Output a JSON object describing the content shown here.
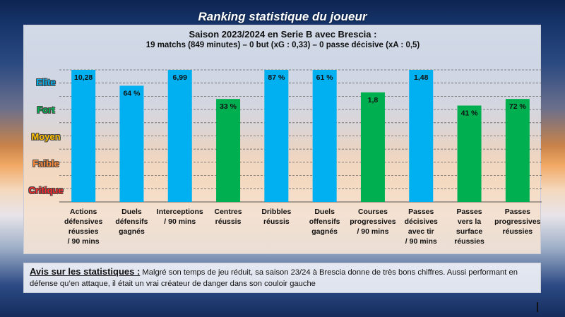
{
  "page": {
    "title": "Ranking statistique du joueur"
  },
  "levels": [
    {
      "label": "Elite",
      "color": "#00b0f0"
    },
    {
      "label": "Fort",
      "color": "#00b050"
    },
    {
      "label": "Moyen",
      "color": "#ffc000"
    },
    {
      "label": "Faible",
      "color": "#ff8c3a"
    },
    {
      "label": "Critique",
      "color": "#ff2a2a"
    }
  ],
  "colors": {
    "bar_blue": "#00b0f0",
    "bar_green": "#00b050",
    "grid": "#666666"
  },
  "chart_data": {
    "type": "bar",
    "title": "Saison 2023/2024 en Serie B avec Brescia :",
    "subtitle": "19 matchs (849 minutes) – 0 but (xG : 0,33) – 0 passe décisive (xA : 0,5)",
    "ylim": [
      0,
      100
    ],
    "grid": true,
    "categories": [
      [
        "Actions",
        "défensives",
        "réussies",
        "/ 90 mins"
      ],
      [
        "Duels",
        "défensifs",
        "gagnés"
      ],
      [
        "Interceptions",
        "/ 90 mins"
      ],
      [
        "Centres",
        "réussis"
      ],
      [
        "Dribbles",
        "réussis"
      ],
      [
        "Duels",
        "offensifs",
        "gagnés"
      ],
      [
        "Courses",
        "progressives",
        "/ 90 mins"
      ],
      [
        "Passes",
        "décisives",
        "avec tir",
        "/ 90 mins"
      ],
      [
        "Passes",
        "vers la",
        "surface",
        "réussies"
      ],
      [
        "Passes",
        "progressives",
        "réussies"
      ]
    ],
    "value_labels": [
      "10,28",
      "64 %",
      "6,99",
      "33 %",
      "87 %",
      "61 %",
      "1,8",
      "1,48",
      "41 %",
      "72 %"
    ],
    "values": [
      100,
      88,
      100,
      78,
      100,
      100,
      83,
      100,
      73,
      78
    ],
    "bar_colors": [
      "blue",
      "blue",
      "blue",
      "green",
      "blue",
      "blue",
      "green",
      "blue",
      "green",
      "green"
    ]
  },
  "comment": {
    "heading": "Avis sur les statistiques :",
    "text": " Malgré son temps de jeu réduit, sa saison 23/24 à Brescia donne de très bons chiffres. Aussi performant en défense qu’en attaque, il était un vrai créateur de danger dans son couloir gauche"
  }
}
